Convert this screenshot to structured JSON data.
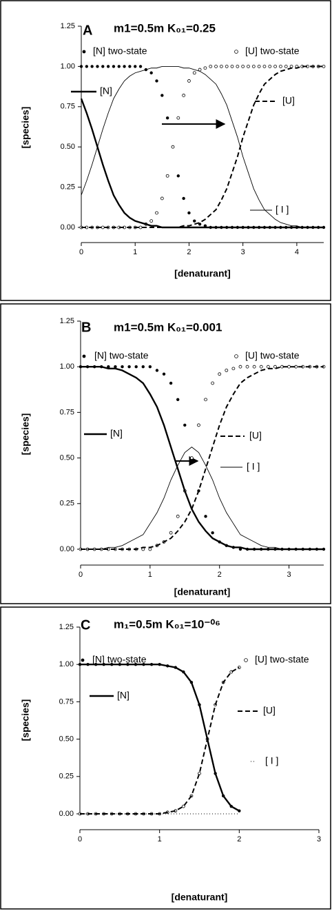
{
  "chart_data": [
    {
      "type": "line",
      "panel_label": "A",
      "title": "m1=0.5m  K₀₁=0.25",
      "x_label": "[denaturant]",
      "y_label": "[species]",
      "xlim": [
        0,
        4.5
      ],
      "ylim": [
        0,
        1.25
      ],
      "xticks": [
        0,
        1,
        2,
        3,
        4
      ],
      "yticks": [
        {
          "value": 0,
          "label": "0.00"
        },
        {
          "value": 0.25,
          "label": "0.25"
        },
        {
          "value": 0.5,
          "label": "0.50"
        },
        {
          "value": 0.75,
          "label": "0.75"
        },
        {
          "value": 1,
          "label": "1.00"
        },
        {
          "value": 1.25,
          "label": "1.25"
        }
      ],
      "x": [
        0,
        0.1,
        0.2,
        0.3,
        0.4,
        0.5,
        0.6,
        0.7,
        0.8,
        0.9,
        1,
        1.1,
        1.2,
        1.3,
        1.4,
        1.5,
        1.6,
        1.7,
        1.8,
        1.9,
        2,
        2.1,
        2.2,
        2.3,
        2.4,
        2.5,
        2.6,
        2.7,
        2.8,
        2.9,
        3,
        3.1,
        3.2,
        3.3,
        3.4,
        3.5,
        3.6,
        3.7,
        3.8,
        3.9,
        4,
        4.1,
        4.2,
        4.3,
        4.4,
        4.5
      ],
      "series": [
        {
          "name": "[N] two-state",
          "style": "filled-dot",
          "color": "#000000",
          "values": [
            1,
            1,
            1,
            1,
            1,
            1,
            1,
            1,
            1,
            1,
            1,
            1,
            0.98,
            0.96,
            0.91,
            0.82,
            0.68,
            0.5,
            0.32,
            0.18,
            0.09,
            0.04,
            0.02,
            0.01,
            0,
            0,
            0,
            0,
            0,
            0,
            0,
            0,
            0,
            0,
            0,
            0,
            0,
            0,
            0,
            0,
            0,
            0,
            0,
            0,
            0,
            0
          ]
        },
        {
          "name": "[U] two-state",
          "style": "open-dot",
          "color": "#000000",
          "values": [
            0,
            0,
            0,
            0,
            0,
            0,
            0,
            0,
            0,
            0,
            0,
            0,
            0.02,
            0.04,
            0.09,
            0.18,
            0.32,
            0.5,
            0.68,
            0.82,
            0.91,
            0.96,
            0.98,
            0.99,
            1,
            1,
            1,
            1,
            1,
            1,
            1,
            1,
            1,
            1,
            1,
            1,
            1,
            1,
            1,
            1,
            1,
            1,
            1,
            1,
            1,
            1
          ]
        },
        {
          "name": "[N]",
          "style": "thick-line",
          "color": "#000000",
          "values": [
            0.8,
            0.71,
            0.61,
            0.5,
            0.39,
            0.29,
            0.2,
            0.14,
            0.09,
            0.06,
            0.04,
            0.03,
            0.02,
            0.01,
            0.01,
            0,
            0,
            0,
            0,
            0,
            0,
            0,
            0,
            0,
            0,
            0,
            0,
            0,
            0,
            0,
            0,
            0,
            0,
            0,
            0,
            0,
            0,
            0,
            0,
            0,
            0,
            0,
            0,
            0,
            0,
            0
          ]
        },
        {
          "name": "[U]",
          "style": "dashed-line",
          "color": "#000000",
          "values": [
            0,
            0,
            0,
            0,
            0,
            0,
            0,
            0,
            0,
            0,
            0,
            0,
            0,
            0,
            0,
            0,
            0,
            0,
            0,
            0.01,
            0.01,
            0.02,
            0.03,
            0.05,
            0.08,
            0.11,
            0.17,
            0.24,
            0.34,
            0.44,
            0.56,
            0.66,
            0.76,
            0.83,
            0.89,
            0.92,
            0.95,
            0.97,
            0.98,
            0.99,
            0.99,
            1,
            1,
            1,
            1,
            1
          ]
        },
        {
          "name": "[ I ]",
          "style": "thin-line",
          "color": "#000000",
          "values": [
            0.2,
            0.29,
            0.39,
            0.5,
            0.61,
            0.71,
            0.8,
            0.86,
            0.91,
            0.94,
            0.96,
            0.97,
            0.98,
            0.99,
            0.99,
            1,
            1,
            1,
            1,
            0.99,
            0.99,
            0.98,
            0.97,
            0.95,
            0.92,
            0.89,
            0.83,
            0.76,
            0.66,
            0.56,
            0.44,
            0.34,
            0.24,
            0.17,
            0.11,
            0.08,
            0.05,
            0.03,
            0.02,
            0.01,
            0.01,
            0,
            0,
            0,
            0,
            0
          ]
        }
      ]
    },
    {
      "type": "line",
      "panel_label": "B",
      "title": "m1=0.5m  K₀₁=0.001",
      "x_label": "[denaturant]",
      "y_label": "[species]",
      "xlim": [
        0,
        3.5
      ],
      "ylim": [
        0,
        1.25
      ],
      "xticks": [
        0,
        1,
        2,
        3
      ],
      "yticks": [
        {
          "value": 0,
          "label": "0.00"
        },
        {
          "value": 0.25,
          "label": "0.25"
        },
        {
          "value": 0.5,
          "label": "0.50"
        },
        {
          "value": 0.75,
          "label": "0.75"
        },
        {
          "value": 1,
          "label": "1.00"
        },
        {
          "value": 1.25,
          "label": "1.25"
        }
      ],
      "x": [
        0,
        0.1,
        0.2,
        0.3,
        0.4,
        0.5,
        0.6,
        0.7,
        0.8,
        0.9,
        1,
        1.1,
        1.2,
        1.3,
        1.4,
        1.5,
        1.6,
        1.7,
        1.8,
        1.9,
        2,
        2.1,
        2.2,
        2.3,
        2.4,
        2.5,
        2.6,
        2.7,
        2.8,
        2.9,
        3,
        3.1,
        3.2,
        3.3,
        3.4,
        3.5
      ],
      "series": [
        {
          "name": "[N] two-state",
          "style": "filled-dot",
          "color": "#000000",
          "values": [
            1,
            1,
            1,
            1,
            1,
            1,
            1,
            1,
            1,
            1,
            1,
            0.98,
            0.96,
            0.91,
            0.82,
            0.68,
            0.5,
            0.32,
            0.18,
            0.09,
            0.04,
            0.02,
            0.01,
            0,
            0,
            0,
            0,
            0,
            0,
            0,
            0,
            0,
            0,
            0,
            0,
            0
          ]
        },
        {
          "name": "[U] two-state",
          "style": "open-dot",
          "color": "#000000",
          "values": [
            0,
            0,
            0,
            0,
            0,
            0,
            0,
            0,
            0,
            0,
            0,
            0.02,
            0.04,
            0.09,
            0.18,
            0.32,
            0.5,
            0.68,
            0.82,
            0.91,
            0.96,
            0.98,
            0.99,
            1,
            1,
            1,
            1,
            1,
            1,
            1,
            1,
            1,
            1,
            1,
            1,
            1
          ]
        },
        {
          "name": "[N]",
          "style": "thick-line",
          "color": "#000000",
          "values": [
            1,
            1,
            1,
            1,
            0.99,
            0.99,
            0.98,
            0.96,
            0.94,
            0.91,
            0.85,
            0.78,
            0.68,
            0.56,
            0.44,
            0.32,
            0.22,
            0.15,
            0.1,
            0.06,
            0.04,
            0.02,
            0.01,
            0.01,
            0,
            0,
            0,
            0,
            0,
            0,
            0,
            0,
            0,
            0,
            0,
            0
          ]
        },
        {
          "name": "[U]",
          "style": "dashed-line",
          "color": "#000000",
          "values": [
            0,
            0,
            0,
            0,
            0,
            0,
            0,
            0,
            0,
            0.01,
            0.01,
            0.02,
            0.04,
            0.06,
            0.1,
            0.15,
            0.22,
            0.32,
            0.44,
            0.56,
            0.68,
            0.78,
            0.85,
            0.91,
            0.94,
            0.96,
            0.98,
            0.99,
            0.99,
            1,
            1,
            1,
            1,
            1,
            1,
            1
          ]
        },
        {
          "name": "[ I ]",
          "style": "thin-line",
          "color": "#000000",
          "values": [
            0,
            0,
            0,
            0,
            0.01,
            0.01,
            0.02,
            0.04,
            0.06,
            0.08,
            0.14,
            0.2,
            0.28,
            0.38,
            0.46,
            0.53,
            0.56,
            0.53,
            0.46,
            0.38,
            0.28,
            0.2,
            0.14,
            0.08,
            0.06,
            0.04,
            0.02,
            0.01,
            0.01,
            0,
            0,
            0,
            0,
            0,
            0,
            0
          ]
        }
      ]
    },
    {
      "type": "line",
      "panel_label": "C",
      "title": "m₁=0.5m  K₀₁=10⁻⁰⁶",
      "x_label": "[denaturant]",
      "y_label": "[species]",
      "xlim": [
        0,
        3
      ],
      "ylim": [
        0,
        1.25
      ],
      "xticks": [
        0,
        1,
        2,
        3
      ],
      "yticks": [
        {
          "value": 0,
          "label": "0.00"
        },
        {
          "value": 0.25,
          "label": "0.25"
        },
        {
          "value": 0.5,
          "label": "0.50"
        },
        {
          "value": 0.75,
          "label": "0.75"
        },
        {
          "value": 1,
          "label": "1.00"
        },
        {
          "value": 1.25,
          "label": "1.25"
        }
      ],
      "x": [
        0,
        0.1,
        0.2,
        0.3,
        0.4,
        0.5,
        0.6,
        0.7,
        0.8,
        0.9,
        1,
        1.1,
        1.2,
        1.3,
        1.4,
        1.5,
        1.6,
        1.7,
        1.8,
        1.9,
        2
      ],
      "series": [
        {
          "name": "[N] two-state",
          "style": "filled-dot",
          "color": "#000000",
          "values": [
            1,
            1,
            1,
            1,
            1,
            1,
            1,
            1,
            1,
            1,
            1,
            0.99,
            0.98,
            0.95,
            0.88,
            0.73,
            0.5,
            0.27,
            0.12,
            0.05,
            0.02
          ]
        },
        {
          "name": "[U] two-state",
          "style": "open-dot",
          "color": "#000000",
          "values": [
            0,
            0,
            0,
            0,
            0,
            0,
            0,
            0,
            0,
            0,
            0,
            0.01,
            0.02,
            0.05,
            0.12,
            0.27,
            0.5,
            0.73,
            0.88,
            0.95,
            0.98
          ]
        },
        {
          "name": "[N]",
          "style": "thick-line",
          "color": "#000000",
          "values": [
            1,
            1,
            1,
            1,
            1,
            1,
            1,
            1,
            1,
            1,
            1,
            0.99,
            0.98,
            0.95,
            0.88,
            0.73,
            0.5,
            0.27,
            0.12,
            0.05,
            0.02
          ]
        },
        {
          "name": "[U]",
          "style": "dashed-line",
          "color": "#000000",
          "values": [
            0,
            0,
            0,
            0,
            0,
            0,
            0,
            0,
            0,
            0,
            0,
            0.01,
            0.02,
            0.05,
            0.12,
            0.27,
            0.5,
            0.73,
            0.88,
            0.95,
            0.98
          ]
        },
        {
          "name": "[ I ]",
          "style": "dotted-line",
          "color": "#000000",
          "values": [
            0,
            0,
            0,
            0,
            0,
            0,
            0,
            0,
            0,
            0,
            0,
            0,
            0,
            0,
            0,
            0,
            0,
            0,
            0,
            0,
            0
          ]
        }
      ]
    }
  ]
}
